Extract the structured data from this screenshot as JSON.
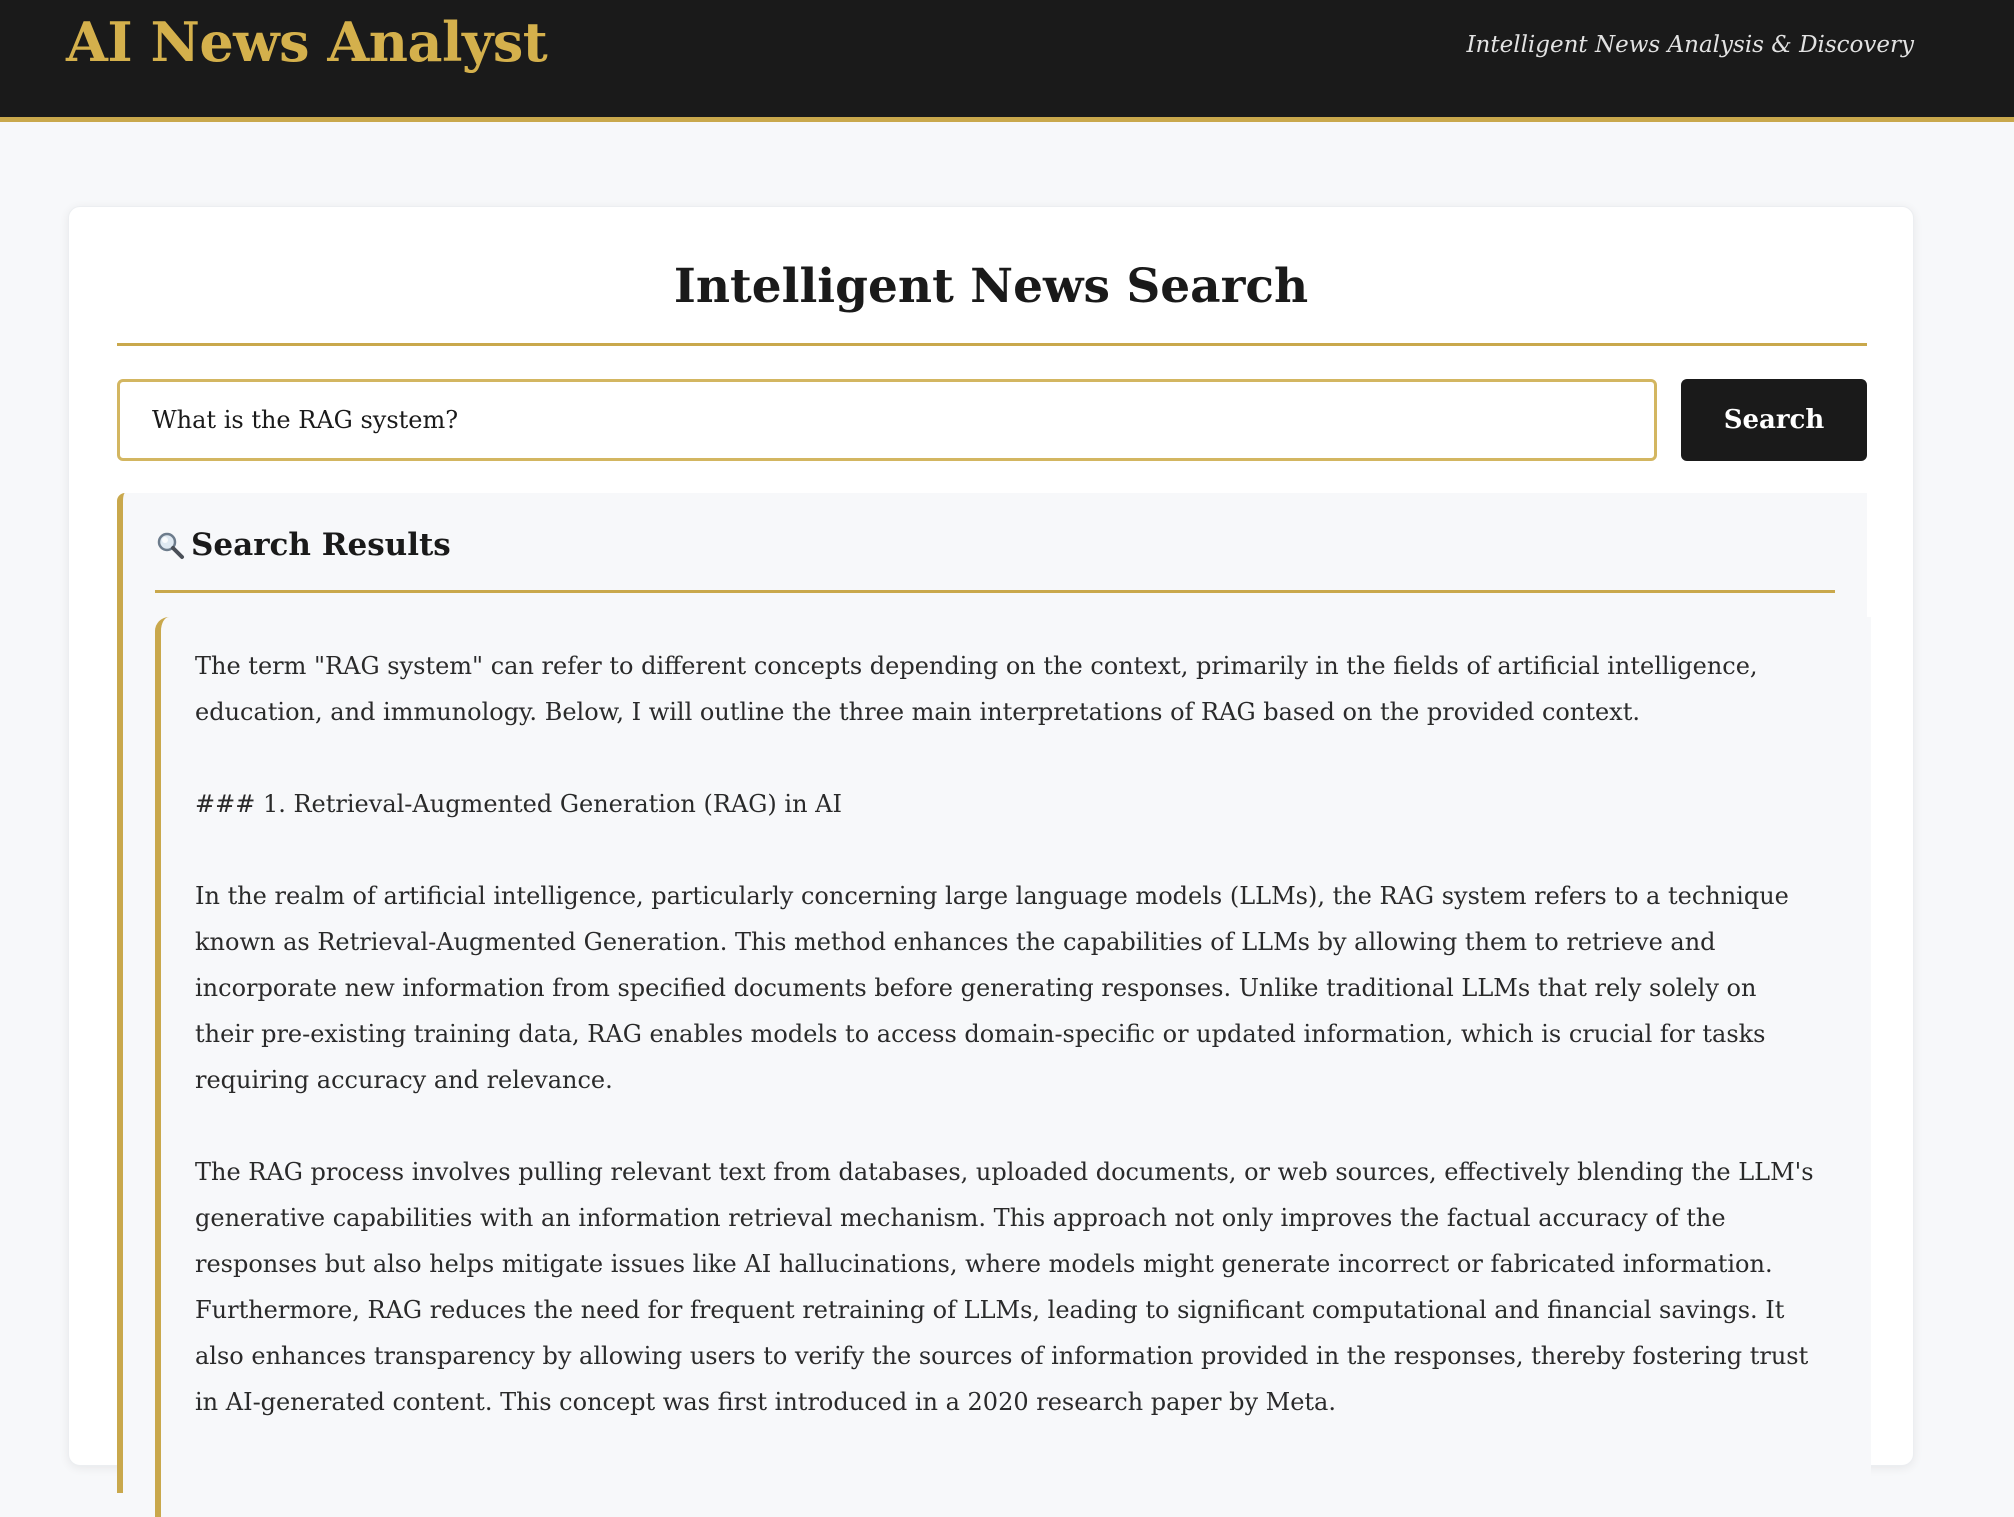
{
  "header": {
    "brand": "AI News Analyst",
    "tagline": "Intelligent News Analysis & Discovery"
  },
  "colors": {
    "accent_gold": "#c9a84c",
    "header_bg": "#1a1a1a",
    "button_bg": "#1a1a1a",
    "page_bg": "#f7f8fa"
  },
  "search": {
    "title": "Intelligent News Search",
    "query": "What is the RAG system?",
    "button_label": "Search"
  },
  "results": {
    "icon": "magnifier-icon",
    "title": "Search Results",
    "paragraphs": [
      "The term \"RAG system\" can refer to different concepts depending on the context, primarily in the fields of artificial intelligence, education, and immunology. Below, I will outline the three main interpretations of RAG based on the provided context.",
      "### 1. Retrieval-Augmented Generation (RAG) in AI",
      "In the realm of artificial intelligence, particularly concerning large language models (LLMs), the RAG system refers to a technique known as Retrieval-Augmented Generation. This method enhances the capabilities of LLMs by allowing them to retrieve and incorporate new information from specified documents before generating responses. Unlike traditional LLMs that rely solely on their pre-existing training data, RAG enables models to access domain-specific or updated information, which is crucial for tasks requiring accuracy and relevance.",
      "The RAG process involves pulling relevant text from databases, uploaded documents, or web sources, effectively blending the LLM's generative capabilities with an information retrieval mechanism. This approach not only improves the factual accuracy of the responses but also helps mitigate issues like AI hallucinations, where models might generate incorrect or fabricated information. Furthermore, RAG reduces the need for frequent retraining of LLMs, leading to significant computational and financial savings. It also enhances transparency by allowing users to verify the sources of information provided in the responses, thereby fostering trust in AI-generated content. This concept was first introduced in a 2020 research paper by Meta."
    ]
  }
}
